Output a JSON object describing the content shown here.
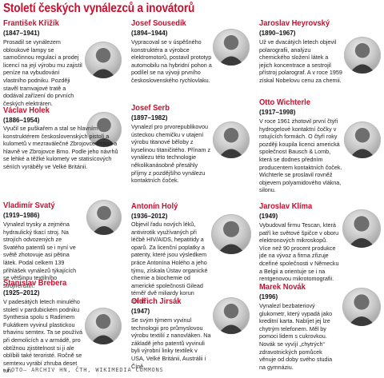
{
  "title": "Století českých vynálezců a inovátorů",
  "credit": "–FOTO– ARCHIV HN, ČTH, WIKIMEDIA COMMONS",
  "people": [
    {
      "id": "krizik",
      "name": "František Křižík",
      "years": "(1847–1941)",
      "text": "Prosadil se vynálezem obloukové lampy se samočinnou regulací a prodej licencí na její výrobu mu zajistil peníze na vybudování vlastního podniku. Později stavěl tramvajové tratě a dodával zařízení do prvních českých elektráren."
    },
    {
      "id": "sousedik",
      "name": "Josef Sousedík",
      "years": "(1894–1944)",
      "text": "Vypracoval se v úspěšného konstruktéra a výrobce elektromotorů, postavil prototyp automobilu na hybridní pohon a podílel se na vývoji prvního československého rychlovlaku."
    },
    {
      "id": "heyrovsky",
      "name": "Jaroslav Heyrovský",
      "years": "(1890–1967)",
      "text": "Už ve dvacátých letech objevil polarografii, analýzu chemického složení látek a jejich koncentrace a sestrojil přístroj polarograf. A v roce 1959 získal Nobelovu cenu za chemii."
    },
    {
      "id": "holek",
      "name": "Václav Holek",
      "years": "(1886–1954)",
      "text": "Vyučil se puškařem a stal se hlavním konstruktérem československých pistolí a kulometů v mezraválečné Zbrojovce Praga a hlavně ve Zbrojovce Brno. Podle jeho návrhů se lehké a těžké kulomety ve statisícových sériích vyráběly ve Velké Británii."
    },
    {
      "id": "serb",
      "name": "Josef Serb",
      "years": "(1897–1982)",
      "text": "Vynalezl pro prvorepublikovou ústeckou chemičku v utajení výrobu titanové běloby z kyselinou titaničitého. Přínam z vynálezu této technologie několikanásobně přesáhly příjmy z pozdějšího vynálezu kontaktních čoček."
    },
    {
      "id": "wichterle",
      "name": "Otto Wichterle",
      "years": "(1917–1998)",
      "text": "V roce 1961 zhotovil první čtyři hydrogelové kontaktní čočky v rotujících formách. O čtyři roky později koupila licenci americká společnost Bausch & Lomb, která se dodnes předním producentem kontaktních čoček. Wichterle se proslavil rovněž objevem polyamidového vlákna, silonu."
    },
    {
      "id": "svaty",
      "name": "Vladimír Svatý",
      "years": "(1919–1986)",
      "text": "Vynalezl trysky a zejména hydraulický tkací stroj. Na strojích odvozených ze Svatého patentů se i nyní ve světě zhotovuje asi pětina látek. Podal celkem 139 přihlášek vynálezů týkajících se většinou textilního strojírenství."
    },
    {
      "id": "holy",
      "name": "Antonín Holý",
      "years": "(1936–2012)",
      "text": "Objevil řadu nových léků, antivirotik využívaných při léčbě HIV/AIDS, hepatitidy a oparů. Za licenční poplatky a patenty, které jsou výsledkem práce Antonína Holého a jeho týmu, získala Ústav organické chemie a biochemie od americké společnosti Gilead téměř dvě miliardy korun ročně."
    },
    {
      "id": "klima",
      "name": "Jaroslav Klíma",
      "years": "(1949)",
      "text": "Vybudoval firmu Tescan, která patří ke světové špičce v oboru elektronových mikroskopů. Více než 90 procent produkce jde na vývoz a firma zřizuje dceřiné společnosti v Německu a Belgii a orientuje se i na rentgenovou mikrotomografii."
    },
    {
      "id": "brebera",
      "name": "Stanislav Brebera",
      "years": "(1925–2012)",
      "text": "V padesátých letech minulého století v pardubickém podniku Synthesia spolu s Radimem Fukátkem vyvinul plastickou trhavinu semtex. Ta se používá při demolicích a v armádě, pro obtížnou zjistitelnost si ji ale oblíbili také teroristé. Ročně se semtexu vyrábí zhruba deset tun."
    },
    {
      "id": "jirsak",
      "name": "Oldřich Jirsák",
      "years": "(1947)",
      "text": "Se svým týmem vyvinul technologii pro průmyslovou výrobu textilií z nanovláken. Na základě jeho patentů vyvinuli byli výrobní linky textilek v USA, Velké Británii, Austrálii i Číně."
    },
    {
      "id": "novak",
      "name": "Marek Novák",
      "years": "(1996)",
      "text": "Vynalezl bezbateriový glukometr, který vypadá jako kreditní karta. Nabíjet jej lze chytrým telefonem. Měl by pomoci lidem s cukrovkou. Novák se vyvíjí „chytrých“ zdravotnických pomůcek věnuje od doby svého studia na gymnáziu."
    }
  ]
}
